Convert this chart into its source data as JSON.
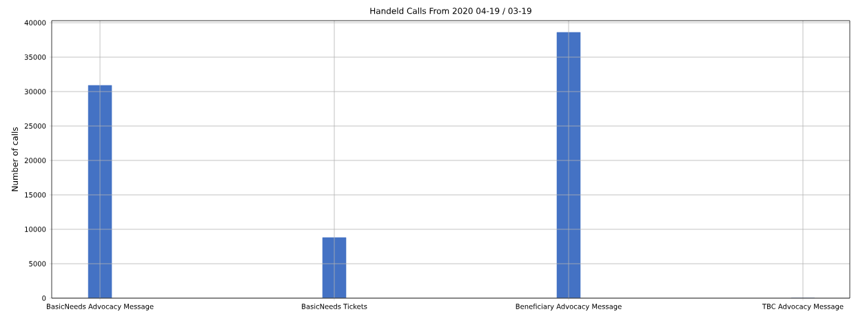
{
  "chart_data": {
    "type": "bar",
    "title": "Handeld Calls From 2020 04-19 / 03-19",
    "ylabel": "Number of calls",
    "categories": [
      "BasicNeeds Advocacy Message",
      "BasicNeeds Tickets",
      "Beneficiary Advocacy Message",
      "TBC Advocacy Message"
    ],
    "values": [
      30900,
      8800,
      38600,
      0
    ],
    "color": "#4472c4",
    "ylim": [
      0,
      40300
    ],
    "yticks": [
      0,
      5000,
      10000,
      15000,
      20000,
      25000,
      30000,
      35000,
      40000
    ],
    "grid": true
  }
}
